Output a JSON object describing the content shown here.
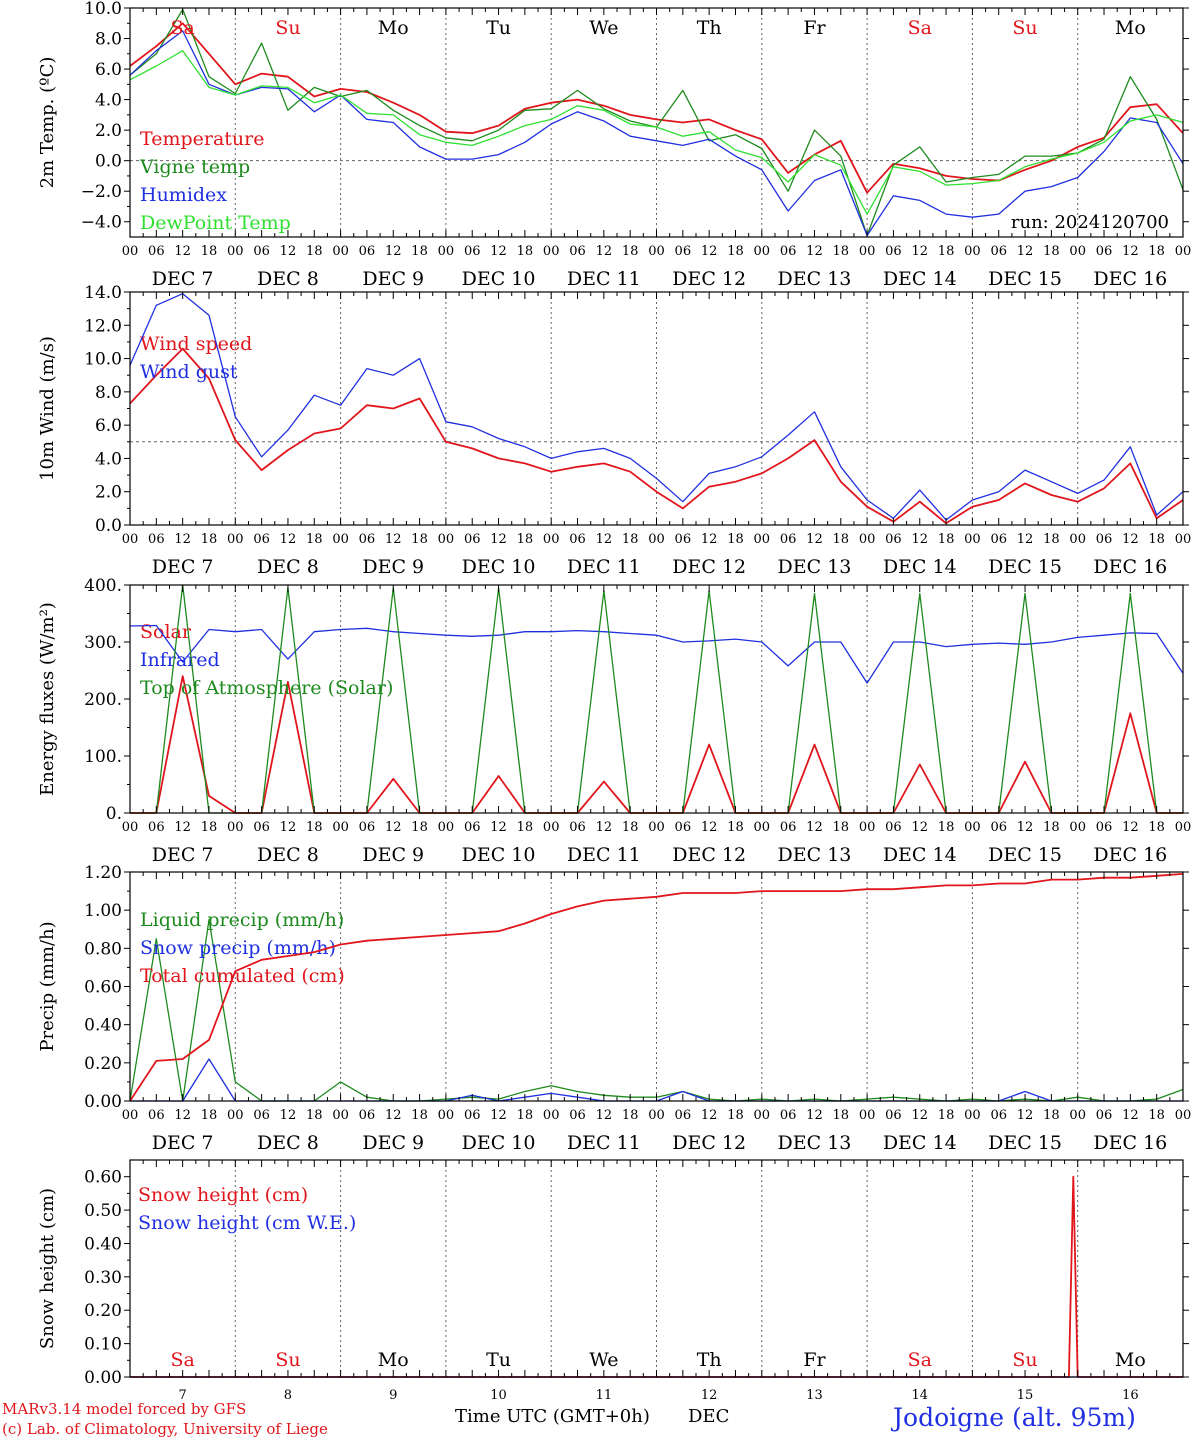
{
  "figure": {
    "run_label": "run: 2024120700",
    "credit_line1": "MARv3.14 model forced by GFS",
    "credit_line2": "(c) Lab. of Climatology, University of Liege",
    "x_title": "Time UTC (GMT+0h)",
    "x_title_month": "DEC",
    "station": "Jodoigne (alt. 95m)",
    "days": [
      "Sa",
      "Su",
      "Mo",
      "Tu",
      "We",
      "Th",
      "Fr",
      "Sa",
      "Su",
      "Mo"
    ],
    "weekend_flags": [
      true,
      true,
      false,
      false,
      false,
      false,
      false,
      true,
      true,
      false
    ],
    "date_labels": [
      "DEC  7",
      "DEC  8",
      "DEC  9",
      "DEC 10",
      "DEC 11",
      "DEC 12",
      "DEC 13",
      "DEC 14",
      "DEC 15",
      "DEC 16"
    ],
    "bottom_day_numbers": [
      "7",
      "8",
      "9",
      "10",
      "11",
      "12",
      "13",
      "14",
      "15",
      "16"
    ],
    "hour_ticks": [
      "00",
      "06",
      "12",
      "18"
    ],
    "hour_tick_final": "00",
    "colors": {
      "red": "#e0161c",
      "green": "#1e8a1e",
      "blue": "#2030e0",
      "lightgreen": "#30e030",
      "axis": "#000000",
      "grid": "#666666"
    }
  },
  "chart_data": [
    {
      "type": "line",
      "id": "temp",
      "ylabel": "2m Temp. (ºC)",
      "ylim": [
        -5,
        10
      ],
      "yticks": [
        -4,
        -2,
        0,
        2,
        4,
        6,
        8,
        10
      ],
      "ytick_labels": [
        "−4.0",
        "−2.0",
        "0.0",
        "2.0",
        "4.0",
        "6.0",
        "8.0",
        "10.0"
      ],
      "ref_line": 0,
      "x_hours": [
        0,
        6,
        12,
        18,
        24,
        30,
        36,
        42,
        48,
        54,
        60,
        66,
        72,
        78,
        84,
        90,
        96,
        102,
        108,
        114,
        120,
        126,
        132,
        138,
        144,
        150,
        156,
        162,
        168,
        174,
        180,
        186,
        192,
        198,
        204,
        210,
        216,
        222,
        228,
        234,
        240
      ],
      "series": [
        {
          "name": "Temperature",
          "color": "red",
          "values": [
            6.2,
            7.5,
            9.0,
            7.0,
            5.0,
            5.7,
            5.5,
            4.2,
            4.7,
            4.5,
            3.8,
            3.0,
            1.9,
            1.8,
            2.3,
            3.4,
            3.8,
            4.0,
            3.6,
            3.0,
            2.7,
            2.5,
            2.7,
            2.0,
            1.4,
            -0.8,
            0.4,
            1.3,
            -2.1,
            -0.2,
            -0.5,
            -1.0,
            -1.2,
            -1.3,
            -0.6,
            0.0,
            0.9,
            1.5,
            3.5,
            3.7,
            1.8
          ]
        },
        {
          "name": "Vigne temp",
          "color": "green",
          "values": [
            5.6,
            7.0,
            9.9,
            5.5,
            4.4,
            7.7,
            3.3,
            4.8,
            4.2,
            4.6,
            3.3,
            2.3,
            1.5,
            1.3,
            2.0,
            3.3,
            3.4,
            4.6,
            3.4,
            2.6,
            2.2,
            4.6,
            1.3,
            1.7,
            0.8,
            -2.0,
            2.0,
            0.3,
            -4.9,
            -0.3,
            0.9,
            -1.4,
            -1.1,
            -0.9,
            0.3,
            0.3,
            0.5,
            1.4,
            5.5,
            2.7,
            -1.9
          ]
        },
        {
          "name": "Humidex",
          "color": "blue",
          "values": [
            5.6,
            7.2,
            8.5,
            5.0,
            4.3,
            4.8,
            4.7,
            3.2,
            4.3,
            2.7,
            2.5,
            0.9,
            0.1,
            0.1,
            0.4,
            1.2,
            2.4,
            3.2,
            2.6,
            1.6,
            1.3,
            1.0,
            1.4,
            0.3,
            -0.6,
            -3.3,
            -1.3,
            -0.6,
            -4.9,
            -2.3,
            -2.6,
            -3.5,
            -3.7,
            -3.5,
            -2.0,
            -1.7,
            -1.1,
            0.6,
            2.8,
            2.5,
            -0.2
          ]
        },
        {
          "name": "DewPoint Temp",
          "color": "lightgreen",
          "values": [
            5.3,
            6.2,
            7.2,
            4.8,
            4.3,
            4.9,
            4.8,
            3.8,
            4.3,
            3.1,
            3.0,
            1.7,
            1.2,
            1.0,
            1.6,
            2.3,
            2.7,
            3.6,
            3.3,
            2.4,
            2.2,
            1.6,
            1.9,
            0.7,
            0.2,
            -1.4,
            0.4,
            -0.3,
            -3.5,
            -0.4,
            -0.7,
            -1.6,
            -1.5,
            -1.3,
            -0.4,
            0.1,
            0.5,
            1.2,
            2.6,
            3.0,
            2.5
          ]
        }
      ]
    },
    {
      "type": "line",
      "id": "wind",
      "ylabel": "10m Wind (m/s)",
      "ylim": [
        0,
        14
      ],
      "yticks": [
        0,
        2,
        4,
        6,
        8,
        10,
        12,
        14
      ],
      "ytick_labels": [
        "0.0",
        "2.0",
        "4.0",
        "6.0",
        "8.0",
        "10.0",
        "12.0",
        "14.0"
      ],
      "ref_line": 5,
      "x_hours": [
        0,
        6,
        12,
        18,
        24,
        30,
        36,
        42,
        48,
        54,
        60,
        66,
        72,
        78,
        84,
        90,
        96,
        102,
        108,
        114,
        120,
        126,
        132,
        138,
        144,
        150,
        156,
        162,
        168,
        174,
        180,
        186,
        192,
        198,
        204,
        210,
        216,
        222,
        228,
        234,
        240
      ],
      "series": [
        {
          "name": "Wind speed",
          "color": "red",
          "values": [
            7.3,
            9.0,
            10.6,
            8.8,
            5.1,
            3.3,
            4.5,
            5.5,
            5.8,
            7.2,
            7.0,
            7.6,
            5.0,
            4.6,
            4.0,
            3.7,
            3.2,
            3.5,
            3.7,
            3.2,
            2.0,
            1.0,
            2.3,
            2.6,
            3.1,
            4.0,
            5.1,
            2.6,
            1.1,
            0.2,
            1.4,
            0.1,
            1.1,
            1.5,
            2.5,
            1.8,
            1.4,
            2.2,
            3.7,
            0.4,
            1.5
          ]
        },
        {
          "name": "Wind gust",
          "color": "blue",
          "values": [
            9.6,
            13.2,
            13.9,
            12.6,
            6.5,
            4.1,
            5.7,
            7.8,
            7.2,
            9.4,
            9.0,
            10.0,
            6.2,
            5.9,
            5.2,
            4.7,
            4.0,
            4.4,
            4.6,
            4.0,
            2.8,
            1.4,
            3.1,
            3.5,
            4.1,
            5.4,
            6.8,
            3.5,
            1.5,
            0.4,
            2.1,
            0.3,
            1.5,
            2.0,
            3.3,
            2.6,
            1.9,
            2.7,
            4.7,
            0.6,
            2.0
          ]
        }
      ]
    },
    {
      "type": "line",
      "id": "energy",
      "ylabel": "Energy fluxes (W/m²)",
      "ylim": [
        0,
        400
      ],
      "yticks": [
        0,
        100,
        200,
        300,
        400
      ],
      "ytick_labels": [
        "0.",
        "100.",
        "200.",
        "300.",
        "400."
      ],
      "ref_line": null,
      "x_hours": [
        0,
        6,
        12,
        18,
        24,
        30,
        36,
        42,
        48,
        54,
        60,
        66,
        72,
        78,
        84,
        90,
        96,
        102,
        108,
        114,
        120,
        126,
        132,
        138,
        144,
        150,
        156,
        162,
        168,
        174,
        180,
        186,
        192,
        198,
        204,
        210,
        216,
        222,
        228,
        234,
        240
      ],
      "series": [
        {
          "name": "Solar",
          "color": "red",
          "values": [
            0,
            0,
            240,
            30,
            0,
            0,
            230,
            0,
            0,
            0,
            60,
            0,
            0,
            0,
            65,
            0,
            0,
            0,
            55,
            0,
            0,
            0,
            120,
            0,
            0,
            0,
            120,
            0,
            0,
            0,
            85,
            0,
            0,
            0,
            90,
            0,
            0,
            0,
            175,
            0,
            0
          ]
        },
        {
          "name": "Infrared",
          "color": "blue",
          "values": [
            328,
            329,
            265,
            322,
            318,
            322,
            270,
            318,
            322,
            324,
            318,
            315,
            312,
            310,
            312,
            318,
            318,
            320,
            318,
            315,
            312,
            300,
            302,
            305,
            300,
            258,
            300,
            300,
            228,
            300,
            300,
            292,
            296,
            298,
            296,
            300,
            308,
            312,
            316,
            315,
            245
          ]
        },
        {
          "name": "Top of Atmosphere (Solar)",
          "color": "green",
          "values": [
            0,
            0,
            400,
            0,
            0,
            0,
            395,
            0,
            0,
            0,
            395,
            0,
            0,
            0,
            395,
            0,
            0,
            0,
            390,
            0,
            0,
            0,
            390,
            0,
            0,
            0,
            385,
            0,
            0,
            0,
            385,
            0,
            0,
            0,
            385,
            0,
            0,
            0,
            385,
            0,
            0
          ]
        }
      ]
    },
    {
      "type": "line",
      "id": "precip",
      "ylabel": "Precip (mm/h)",
      "ylim": [
        0,
        1.2
      ],
      "yticks": [
        0,
        0.2,
        0.4,
        0.6,
        0.8,
        1.0,
        1.2
      ],
      "ytick_labels": [
        "0.00",
        "0.20",
        "0.40",
        "0.60",
        "0.80",
        "1.00",
        "1.20"
      ],
      "ref_line": null,
      "x_hours": [
        0,
        6,
        12,
        18,
        24,
        30,
        36,
        42,
        48,
        54,
        60,
        66,
        72,
        78,
        84,
        90,
        96,
        102,
        108,
        114,
        120,
        126,
        132,
        138,
        144,
        150,
        156,
        162,
        168,
        174,
        180,
        186,
        192,
        198,
        204,
        210,
        216,
        222,
        228,
        234,
        240
      ],
      "series": [
        {
          "name": "Liquid precip (mm/h)",
          "color": "green",
          "values": [
            0,
            0.85,
            0,
            0.95,
            0.1,
            0,
            0,
            0,
            0.1,
            0.02,
            0,
            0,
            0.01,
            0.02,
            0.01,
            0.05,
            0.08,
            0.05,
            0.03,
            0.02,
            0.02,
            0.05,
            0.01,
            0,
            0.01,
            0,
            0.01,
            0,
            0.01,
            0.02,
            0.01,
            0,
            0.01,
            0,
            0.01,
            0,
            0.02,
            0,
            0,
            0.01,
            0.06
          ]
        },
        {
          "name": "Snow precip (mm/h)",
          "color": "blue",
          "values": [
            0,
            0,
            0,
            0.22,
            0,
            0,
            0,
            0,
            0,
            0,
            0,
            0,
            0,
            0.03,
            0,
            0.02,
            0.04,
            0.02,
            0,
            0,
            0,
            0.05,
            0,
            0,
            0,
            0,
            0,
            0,
            0,
            0,
            0,
            0,
            0,
            0,
            0.05,
            0,
            0,
            0,
            0,
            0,
            0
          ]
        },
        {
          "name": "Total cumulated (cm)",
          "color": "red",
          "values": [
            0,
            0.21,
            0.22,
            0.32,
            0.68,
            0.74,
            0.76,
            0.78,
            0.82,
            0.84,
            0.85,
            0.86,
            0.87,
            0.88,
            0.89,
            0.93,
            0.98,
            1.02,
            1.05,
            1.06,
            1.07,
            1.09,
            1.09,
            1.09,
            1.1,
            1.1,
            1.1,
            1.1,
            1.11,
            1.11,
            1.12,
            1.13,
            1.13,
            1.14,
            1.14,
            1.16,
            1.16,
            1.17,
            1.17,
            1.18,
            1.19
          ]
        }
      ]
    },
    {
      "type": "line",
      "id": "snow",
      "ylabel": "Snow height (cm)",
      "ylim": [
        0,
        0.65
      ],
      "yticks": [
        0,
        0.1,
        0.2,
        0.3,
        0.4,
        0.5,
        0.6
      ],
      "ytick_labels": [
        "0.00",
        "0.10",
        "0.20",
        "0.30",
        "0.40",
        "0.50",
        "0.60"
      ],
      "ref_line": null,
      "x_hours": [
        0,
        24,
        48,
        72,
        96,
        120,
        144,
        168,
        192,
        214,
        215,
        216,
        217,
        240
      ],
      "series": [
        {
          "name": "Snow height (cm)",
          "color": "red",
          "values": [
            0,
            0,
            0,
            0,
            0,
            0,
            0,
            0,
            0,
            0,
            0.6,
            0,
            0,
            0
          ]
        },
        {
          "name": "Snow height (cm W.E.)",
          "color": "blue",
          "values": [
            0,
            0,
            0,
            0,
            0,
            0,
            0,
            0,
            0,
            0,
            0,
            0,
            0,
            0
          ]
        }
      ]
    }
  ]
}
